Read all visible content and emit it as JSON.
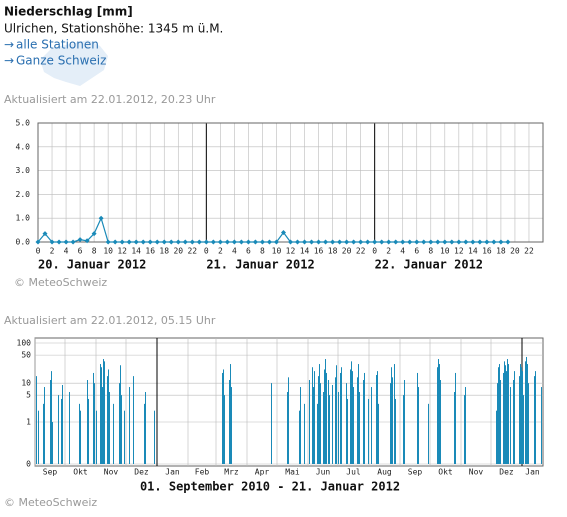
{
  "header": {
    "title": "Niederschlag [mm]",
    "station": "Ulrichen, Stationshöhe: 1345 m ü.M.",
    "links": [
      "alle Stationen",
      "Ganze Schweiz"
    ]
  },
  "chart_data": [
    {
      "type": "line",
      "updated": "Aktualisiert am 22.01.2012, 20.23 Uhr",
      "credit": "© MeteoSchweiz",
      "color": "#1a8ab8",
      "grid": true,
      "day_labels": [
        "20. Januar 2012",
        "21. Januar 2012",
        "22. Januar 2012"
      ],
      "x": [
        0,
        1,
        2,
        3,
        4,
        5,
        6,
        7,
        8,
        9,
        10,
        11,
        12,
        13,
        14,
        15,
        16,
        17,
        18,
        19,
        20,
        21,
        22,
        23,
        24,
        25,
        26,
        27,
        28,
        29,
        30,
        31,
        32,
        33,
        34,
        35,
        36,
        37,
        38,
        39,
        40,
        41,
        42,
        43,
        44,
        45,
        46,
        47,
        48,
        49,
        50,
        51,
        52,
        53,
        54,
        55,
        56,
        57,
        58,
        59,
        60,
        61,
        62,
        63,
        64,
        65,
        66,
        67
      ],
      "values": [
        0,
        0.35,
        0,
        0,
        0,
        0,
        0.1,
        0.05,
        0.35,
        1.0,
        0,
        0,
        0,
        0,
        0,
        0,
        0,
        0,
        0,
        0,
        0,
        0,
        0,
        0,
        0,
        0,
        0,
        0,
        0,
        0,
        0,
        0,
        0,
        0,
        0,
        0.4,
        0,
        0,
        0,
        0,
        0,
        0,
        0,
        0,
        0,
        0,
        0,
        0,
        0,
        0,
        0,
        0,
        0,
        0,
        0,
        0,
        0,
        0,
        0,
        0,
        0,
        0,
        0,
        0,
        0,
        0,
        0,
        0
      ],
      "xlim": [
        0,
        72
      ],
      "xticks": [
        0,
        2,
        4,
        6,
        8,
        10,
        12,
        14,
        16,
        18,
        20,
        22,
        {
          "value": 24,
          "label": "0"
        },
        {
          "value": 26,
          "label": "2"
        },
        {
          "value": 28,
          "label": "4"
        },
        {
          "value": 30,
          "label": "6"
        },
        {
          "value": 32,
          "label": "8"
        },
        {
          "value": 34,
          "label": "10"
        },
        {
          "value": 36,
          "label": "12"
        },
        {
          "value": 38,
          "label": "14"
        },
        {
          "value": 40,
          "label": "16"
        },
        {
          "value": 42,
          "label": "18"
        },
        {
          "value": 44,
          "label": "20"
        },
        {
          "value": 46,
          "label": "22"
        },
        {
          "value": 48,
          "label": "0"
        },
        {
          "value": 50,
          "label": "2"
        },
        {
          "value": 52,
          "label": "4"
        },
        {
          "value": 54,
          "label": "6"
        },
        {
          "value": 56,
          "label": "8"
        },
        {
          "value": 58,
          "label": "10"
        },
        {
          "value": 60,
          "label": "12"
        },
        {
          "value": 62,
          "label": "14"
        },
        {
          "value": 64,
          "label": "16"
        },
        {
          "value": 66,
          "label": "18"
        },
        {
          "value": 68,
          "label": "20"
        },
        {
          "value": 70,
          "label": "22"
        }
      ],
      "ylim": [
        0,
        5
      ],
      "yticks": [
        {
          "value": 0,
          "label": "0.0"
        },
        {
          "value": 1,
          "label": "1.0"
        },
        {
          "value": 2,
          "label": "2.0"
        },
        {
          "value": 3,
          "label": "3.0"
        },
        {
          "value": 4,
          "label": "4.0"
        },
        {
          "value": 5,
          "label": "5.0"
        }
      ]
    },
    {
      "type": "bar",
      "updated": "Aktualisiert am 22.01.2012, 05.15 Uhr",
      "credit": "© MeteoSchweiz",
      "subtitle": "01. September 2010 - 21. Januar 2012",
      "color": "#1a8ab8",
      "grid": true,
      "y_scale": "log",
      "xlim": [
        0,
        508
      ],
      "xticks": [
        {
          "value": 0,
          "label": "Sep"
        },
        {
          "value": 30,
          "label": "Okt"
        },
        {
          "value": 61,
          "label": "Nov"
        },
        {
          "value": 91,
          "label": "Dez"
        },
        {
          "value": 122,
          "label": "Jan"
        },
        {
          "value": 153,
          "label": "Feb"
        },
        {
          "value": 181,
          "label": "Mrz"
        },
        {
          "value": 212,
          "label": "Apr"
        },
        {
          "value": 242,
          "label": "Mai"
        },
        {
          "value": 273,
          "label": "Jun"
        },
        {
          "value": 303,
          "label": "Jul"
        },
        {
          "value": 334,
          "label": "Aug"
        },
        {
          "value": 365,
          "label": "Sep"
        },
        {
          "value": 395,
          "label": "Okt"
        },
        {
          "value": 426,
          "label": "Nov"
        },
        {
          "value": 456,
          "label": "Dez"
        },
        {
          "value": 487,
          "label": "Jan"
        }
      ],
      "ylim": [
        0,
        100
      ],
      "yticks": [
        0,
        1,
        5,
        10,
        50,
        100
      ],
      "values": [
        0,
        15,
        0,
        2,
        0,
        0,
        0,
        0,
        3,
        8,
        0,
        0,
        0,
        0,
        0,
        12,
        20,
        1,
        0,
        0,
        0,
        0,
        0,
        5,
        0,
        0,
        4,
        9,
        0,
        0,
        0,
        0,
        0,
        0,
        6,
        0,
        0,
        0,
        0,
        0,
        0,
        0,
        0,
        0,
        3,
        2,
        0,
        0,
        0,
        0,
        0,
        0,
        12,
        4,
        0,
        0,
        0,
        0,
        18,
        10,
        0,
        2,
        0,
        0,
        0,
        30,
        25,
        8,
        40,
        35,
        0,
        0,
        15,
        22,
        6,
        0,
        0,
        0,
        3,
        0,
        0,
        0,
        0,
        0,
        10,
        28,
        5,
        0,
        0,
        2,
        0,
        0,
        0,
        0,
        8,
        0,
        0,
        0,
        15,
        0,
        0,
        0,
        0,
        0,
        0,
        0,
        0,
        0,
        0,
        3,
        6,
        0,
        0,
        0,
        0,
        0,
        0,
        0,
        0,
        2,
        0,
        0,
        0,
        0,
        0,
        0,
        0,
        0,
        0,
        0,
        0,
        0,
        0,
        0,
        0,
        0,
        0,
        0,
        0,
        0,
        0,
        0,
        0,
        0,
        0,
        0,
        0,
        0,
        0,
        0,
        0,
        0,
        0,
        0,
        0,
        0,
        0,
        0,
        0,
        0,
        0,
        0,
        0,
        0,
        0,
        0,
        0,
        0,
        0,
        0,
        0,
        0,
        0,
        0,
        0,
        0,
        0,
        0,
        0,
        0,
        0,
        0,
        0,
        0,
        0,
        0,
        0,
        18,
        22,
        5,
        0,
        0,
        0,
        0,
        12,
        30,
        8,
        0,
        0,
        0,
        0,
        0,
        0,
        0,
        0,
        0,
        0,
        0,
        0,
        0,
        0,
        0,
        0,
        0,
        0,
        0,
        0,
        0,
        0,
        0,
        0,
        0,
        0,
        0,
        0,
        0,
        0,
        0,
        0,
        0,
        0,
        0,
        0,
        0,
        0,
        0,
        10,
        0,
        0,
        0,
        0,
        0,
        0,
        0,
        0,
        0,
        0,
        0,
        0,
        0,
        0,
        0,
        6,
        14,
        0,
        0,
        0,
        0,
        0,
        0,
        0,
        0,
        0,
        0,
        2,
        8,
        0,
        0,
        0,
        3,
        0,
        0,
        0,
        0,
        12,
        0,
        0,
        25,
        8,
        20,
        0,
        0,
        3,
        15,
        30,
        10,
        0,
        0,
        6,
        22,
        40,
        18,
        0,
        12,
        5,
        0,
        0,
        9,
        0,
        0,
        14,
        28,
        0,
        6,
        0,
        18,
        25,
        0,
        0,
        0,
        0,
        10,
        4,
        0,
        0,
        22,
        35,
        20,
        8,
        0,
        0,
        0,
        14,
        30,
        6,
        0,
        0,
        0,
        12,
        18,
        0,
        0,
        0,
        4,
        0,
        0,
        8,
        0,
        0,
        0,
        0,
        16,
        20,
        3,
        0,
        0,
        0,
        0,
        0,
        0,
        0,
        0,
        0,
        0,
        0,
        10,
        25,
        14,
        0,
        30,
        4,
        0,
        0,
        0,
        0,
        0,
        0,
        0,
        5,
        12,
        0,
        0,
        0,
        0,
        0,
        0,
        0,
        0,
        0,
        0,
        0,
        0,
        18,
        8,
        0,
        0,
        0,
        0,
        0,
        0,
        0,
        0,
        0,
        3,
        0,
        0,
        0,
        0,
        0,
        0,
        0,
        0,
        25,
        40,
        30,
        12,
        0,
        0,
        0,
        0,
        0,
        0,
        0,
        0,
        0,
        0,
        0,
        0,
        0,
        6,
        18,
        0,
        0,
        0,
        0,
        0,
        0,
        0,
        0,
        5,
        8,
        0,
        0,
        0,
        0,
        0,
        0,
        0,
        0,
        0,
        0,
        0,
        0,
        0,
        0,
        0,
        0,
        0,
        0,
        0,
        0,
        0,
        0,
        0,
        0,
        0,
        0,
        0,
        0,
        0,
        0,
        2,
        10,
        25,
        30,
        12,
        0,
        0,
        18,
        35,
        28,
        20,
        40,
        30,
        0,
        8,
        0,
        0,
        12,
        20,
        0,
        0,
        0,
        0,
        15,
        30,
        25,
        20,
        5,
        0,
        35,
        45,
        30,
        10,
        0,
        0,
        0,
        0,
        0,
        15,
        20,
        0,
        0,
        0,
        0,
        0,
        8,
        0
      ]
    }
  ]
}
